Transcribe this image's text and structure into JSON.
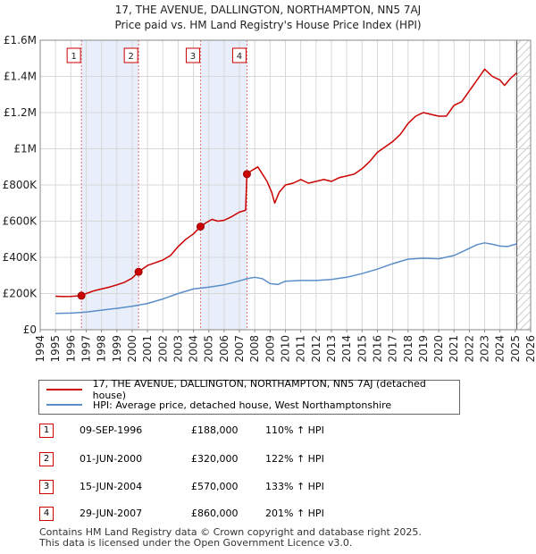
{
  "chart_data": {
    "type": "line",
    "title": "17, THE AVENUE, DALLINGTON, NORTHAMPTON, NN5 7AJ",
    "subtitle": "Price paid vs. HM Land Registry's House Price Index (HPI)",
    "xlim": [
      1994,
      2026
    ],
    "ylim": [
      0,
      1600000
    ],
    "x_ticks": [
      "1994",
      "1995",
      "1996",
      "1997",
      "1998",
      "1999",
      "2000",
      "2001",
      "2002",
      "2003",
      "2004",
      "2005",
      "2006",
      "2007",
      "2008",
      "2009",
      "2010",
      "2011",
      "2012",
      "2013",
      "2014",
      "2015",
      "2016",
      "2017",
      "2018",
      "2019",
      "2020",
      "2021",
      "2022",
      "2023",
      "2024",
      "2025",
      "2026"
    ],
    "y_ticks": [
      {
        "value": 0,
        "label": "£0"
      },
      {
        "value": 200000,
        "label": "£200K"
      },
      {
        "value": 400000,
        "label": "£400K"
      },
      {
        "value": 600000,
        "label": "£600K"
      },
      {
        "value": 800000,
        "label": "£800K"
      },
      {
        "value": 1000000,
        "label": "£1M"
      },
      {
        "value": 1200000,
        "label": "£1.2M"
      },
      {
        "value": 1400000,
        "label": "£1.4M"
      },
      {
        "value": 1600000,
        "label": "£1.6M"
      }
    ],
    "shaded_ranges": [
      [
        1996.69,
        2000.42
      ],
      [
        2004.46,
        2007.49
      ]
    ],
    "hatched_range": [
      2025.1,
      2026
    ],
    "grid": true,
    "series": [
      {
        "name": "17, THE AVENUE, DALLINGTON, NORTHAMPTON, NN5 7AJ (detached house)",
        "color": "#cc0000",
        "points": [
          [
            1995.0,
            185000
          ],
          [
            1995.5,
            183000
          ],
          [
            1996.0,
            184000
          ],
          [
            1996.5,
            187000
          ],
          [
            1996.69,
            188000
          ],
          [
            1997.0,
            200000
          ],
          [
            1997.5,
            215000
          ],
          [
            1998.0,
            225000
          ],
          [
            1998.5,
            235000
          ],
          [
            1999.0,
            248000
          ],
          [
            1999.5,
            262000
          ],
          [
            2000.0,
            285000
          ],
          [
            2000.42,
            320000
          ],
          [
            2001.0,
            355000
          ],
          [
            2001.5,
            370000
          ],
          [
            2002.0,
            385000
          ],
          [
            2002.5,
            410000
          ],
          [
            2003.0,
            460000
          ],
          [
            2003.5,
            500000
          ],
          [
            2004.0,
            530000
          ],
          [
            2004.46,
            570000
          ],
          [
            2004.8,
            590000
          ],
          [
            2005.2,
            610000
          ],
          [
            2005.6,
            600000
          ],
          [
            2006.0,
            605000
          ],
          [
            2006.5,
            625000
          ],
          [
            2007.0,
            650000
          ],
          [
            2007.4,
            660000
          ],
          [
            2007.49,
            860000
          ],
          [
            2007.8,
            880000
          ],
          [
            2008.2,
            900000
          ],
          [
            2008.5,
            860000
          ],
          [
            2008.8,
            820000
          ],
          [
            2009.1,
            760000
          ],
          [
            2009.3,
            700000
          ],
          [
            2009.6,
            760000
          ],
          [
            2010.0,
            800000
          ],
          [
            2010.5,
            810000
          ],
          [
            2011.0,
            830000
          ],
          [
            2011.5,
            810000
          ],
          [
            2012.0,
            820000
          ],
          [
            2012.5,
            830000
          ],
          [
            2013.0,
            820000
          ],
          [
            2013.5,
            840000
          ],
          [
            2014.0,
            850000
          ],
          [
            2014.5,
            860000
          ],
          [
            2015.0,
            890000
          ],
          [
            2015.5,
            930000
          ],
          [
            2016.0,
            980000
          ],
          [
            2016.5,
            1010000
          ],
          [
            2017.0,
            1040000
          ],
          [
            2017.5,
            1080000
          ],
          [
            2018.0,
            1140000
          ],
          [
            2018.5,
            1180000
          ],
          [
            2019.0,
            1200000
          ],
          [
            2019.5,
            1190000
          ],
          [
            2020.0,
            1180000
          ],
          [
            2020.5,
            1180000
          ],
          [
            2021.0,
            1240000
          ],
          [
            2021.5,
            1260000
          ],
          [
            2022.0,
            1320000
          ],
          [
            2022.5,
            1380000
          ],
          [
            2023.0,
            1440000
          ],
          [
            2023.5,
            1400000
          ],
          [
            2024.0,
            1380000
          ],
          [
            2024.3,
            1350000
          ],
          [
            2024.7,
            1390000
          ],
          [
            2025.1,
            1420000
          ]
        ]
      },
      {
        "name": "HPI: Average price, detached house, West Northamptonshire",
        "color": "#5b8ec8",
        "points": [
          [
            1995.0,
            90000
          ],
          [
            1996.0,
            92000
          ],
          [
            1997.0,
            98000
          ],
          [
            1998.0,
            108000
          ],
          [
            1999.0,
            118000
          ],
          [
            2000.0,
            130000
          ],
          [
            2001.0,
            145000
          ],
          [
            2002.0,
            170000
          ],
          [
            2003.0,
            200000
          ],
          [
            2004.0,
            225000
          ],
          [
            2005.0,
            235000
          ],
          [
            2006.0,
            248000
          ],
          [
            2007.0,
            270000
          ],
          [
            2007.5,
            282000
          ],
          [
            2008.0,
            290000
          ],
          [
            2008.5,
            282000
          ],
          [
            2009.0,
            255000
          ],
          [
            2009.5,
            250000
          ],
          [
            2010.0,
            268000
          ],
          [
            2011.0,
            272000
          ],
          [
            2012.0,
            272000
          ],
          [
            2013.0,
            278000
          ],
          [
            2014.0,
            290000
          ],
          [
            2015.0,
            310000
          ],
          [
            2016.0,
            335000
          ],
          [
            2017.0,
            365000
          ],
          [
            2018.0,
            390000
          ],
          [
            2019.0,
            395000
          ],
          [
            2020.0,
            392000
          ],
          [
            2021.0,
            410000
          ],
          [
            2022.0,
            450000
          ],
          [
            2022.5,
            470000
          ],
          [
            2023.0,
            480000
          ],
          [
            2023.5,
            472000
          ],
          [
            2024.0,
            462000
          ],
          [
            2024.5,
            460000
          ],
          [
            2025.1,
            475000
          ]
        ]
      }
    ],
    "sale_markers": [
      {
        "label": "1",
        "x": 1996.69,
        "y": 188000
      },
      {
        "label": "2",
        "x": 2000.42,
        "y": 320000
      },
      {
        "label": "3",
        "x": 2004.46,
        "y": 570000
      },
      {
        "label": "4",
        "x": 2007.49,
        "y": 860000
      }
    ]
  },
  "legend": {
    "items": [
      {
        "label": "17, THE AVENUE, DALLINGTON, NORTHAMPTON, NN5 7AJ (detached house)",
        "color": "#cc0000"
      },
      {
        "label": "HPI: Average price, detached house, West Northamptonshire",
        "color": "#5b8ec8"
      }
    ]
  },
  "transactions": [
    {
      "num": "1",
      "date": "09-SEP-1996",
      "price": "£188,000",
      "hpi": "110% ↑ HPI"
    },
    {
      "num": "2",
      "date": "01-JUN-2000",
      "price": "£320,000",
      "hpi": "122% ↑ HPI"
    },
    {
      "num": "3",
      "date": "15-JUN-2004",
      "price": "£570,000",
      "hpi": "133% ↑ HPI"
    },
    {
      "num": "4",
      "date": "29-JUN-2007",
      "price": "£860,000",
      "hpi": "201% ↑ HPI"
    }
  ],
  "footer": {
    "line1": "Contains HM Land Registry data © Crown copyright and database right 2025.",
    "line2": "This data is licensed under the Open Government Licence v3.0."
  }
}
